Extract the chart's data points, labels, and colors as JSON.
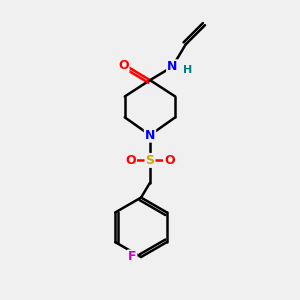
{
  "background_color": "#f0f0f0",
  "atom_colors": {
    "O": "#ff0000",
    "N": "#0000ff",
    "S": "#ccaa00",
    "F": "#cc00cc",
    "H": "#008080",
    "C": "#000000"
  },
  "bond_color": "#000000",
  "bond_width": 1.8,
  "figsize": [
    3.0,
    3.0
  ],
  "dpi": 100
}
